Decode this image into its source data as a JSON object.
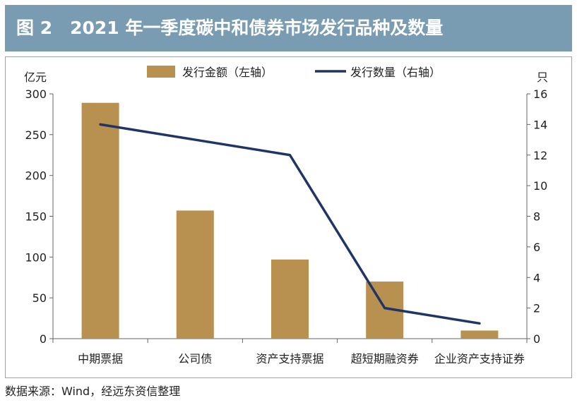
{
  "header": {
    "title": "图 2　2021 年一季度碳中和债券市场发行品种及数量"
  },
  "source": "数据来源：Wind，经远东资信整理",
  "colors": {
    "header_bg": "#7a9cb3",
    "bar": "#b8904f",
    "line": "#1f3566",
    "axis": "#666666"
  },
  "chart_data": {
    "type": "bar",
    "title": "",
    "categories": [
      "中期票据",
      "公司债",
      "资产支持票据",
      "超短期融资券",
      "企业资产支持证券"
    ],
    "series": [
      {
        "name": "发行金额（左轴）",
        "type": "bar",
        "axis": "left",
        "values": [
          289,
          157,
          97,
          70,
          10
        ]
      },
      {
        "name": "发行数量（右轴）",
        "type": "line",
        "axis": "right",
        "values": [
          14,
          13,
          12,
          2,
          1
        ]
      }
    ],
    "ylabel_left": "亿元",
    "ylabel_right": "只",
    "ylim_left": [
      0,
      300
    ],
    "ylim_right": [
      0,
      16
    ],
    "yticks_left": [
      "0",
      "50",
      "100",
      "150",
      "200",
      "250",
      "300"
    ],
    "yticks_right": [
      "0",
      "2",
      "4",
      "6",
      "8",
      "10",
      "12",
      "14",
      "16"
    ],
    "legend": [
      "发行金额（左轴）",
      "发行数量（右轴）"
    ],
    "legend_position": "top-center",
    "grid": false
  }
}
